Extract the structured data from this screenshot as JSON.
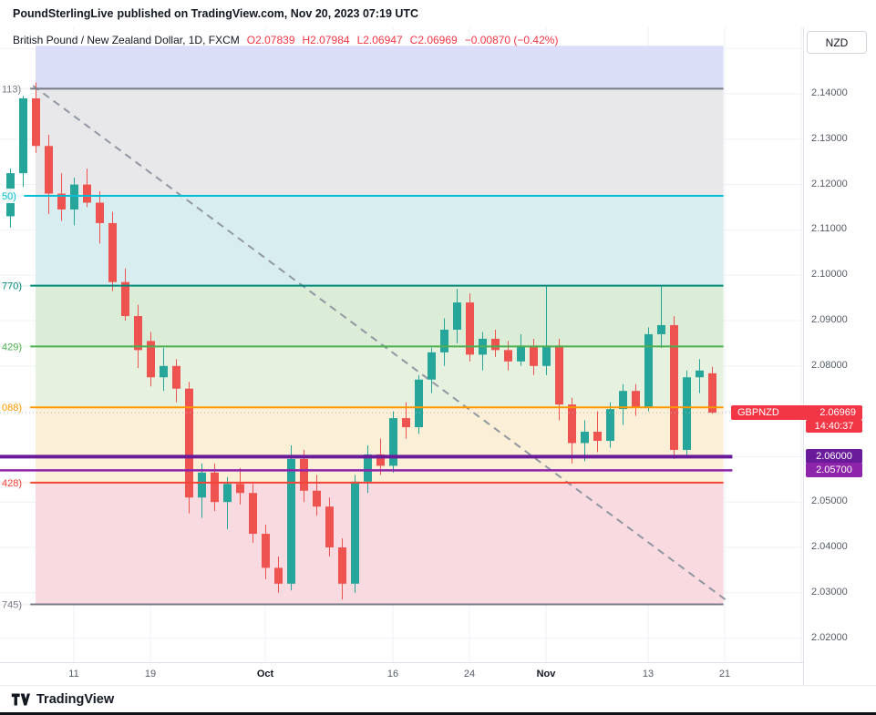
{
  "header": {
    "brand": "PoundSterlingLive",
    "rest": "published on TradingView.com, Nov 20, 2023 07:19 UTC"
  },
  "legend": {
    "symbol": "British Pound / New Zealand Dollar, 1D, FXCM",
    "ohlc": [
      {
        "label": "O",
        "value": "2.07839"
      },
      {
        "label": "H",
        "value": "2.07984"
      },
      {
        "label": "L",
        "value": "2.06947"
      },
      {
        "label": "C",
        "value": "2.06969"
      }
    ],
    "change": "−0.00870 (−0.42%)"
  },
  "price_axis": {
    "currency_button": "NZD",
    "badges": [
      {
        "name": "symbol-last-price-badge",
        "label": "GBPNZD",
        "value": "2.06969",
        "price": 2.06969,
        "bg": "#f23645",
        "row": 0
      },
      {
        "name": "countdown-badge",
        "value": "14:40:37",
        "price": 2.06969,
        "bg": "#f23645",
        "row": 1
      },
      {
        "name": "level-badge-206",
        "value": "2.06000",
        "price": 2.06,
        "bg": "#6a1b9a",
        "row": 0
      },
      {
        "name": "level-badge-2057",
        "value": "2.05700",
        "price": 2.057,
        "bg": "#8e24aa",
        "row": 0
      }
    ]
  },
  "footer": {
    "brand": "TradingView"
  },
  "chart_data": {
    "type": "candlestick",
    "title": "British Pound / New Zealand Dollar, 1D, FXCM",
    "symbol": "GBPNZD",
    "timeframe": "1D",
    "exchange": "FXCM",
    "last_ohlc": {
      "open": 2.07839,
      "high": 2.07984,
      "low": 2.06947,
      "close": 2.06969,
      "change": "−0.00870",
      "change_pct": "−0.42%"
    },
    "colors": {
      "up": "#26a69a",
      "down": "#ef5350"
    },
    "y_axis": {
      "min": 2.0147,
      "max": 2.1547,
      "ticks": [
        2.14,
        2.13,
        2.12,
        2.11,
        2.1,
        2.09,
        2.08,
        2.05,
        2.04,
        2.03,
        2.02
      ],
      "grid": [
        2.15,
        2.14,
        2.13,
        2.12,
        2.11,
        2.1,
        2.09,
        2.08,
        2.07,
        2.06,
        2.05,
        2.04,
        2.03,
        2.02
      ]
    },
    "x_axis": {
      "labels": [
        {
          "index": 5,
          "label": "11"
        },
        {
          "index": 11,
          "label": "19"
        },
        {
          "index": 20,
          "label": "Oct",
          "major": true
        },
        {
          "index": 30,
          "label": "16"
        },
        {
          "index": 36,
          "label": "24"
        },
        {
          "index": 42,
          "label": "Nov",
          "major": true
        },
        {
          "index": 50,
          "label": "13"
        },
        {
          "index": 56,
          "label": "21"
        },
        {
          "index": 62,
          "label": ""
        }
      ]
    },
    "candles": [
      [
        2.113,
        2.1235,
        2.1105,
        2.1225
      ],
      [
        2.1225,
        2.1405,
        2.1195,
        2.139
      ],
      [
        2.139,
        2.1425,
        2.127,
        2.1285
      ],
      [
        2.1285,
        2.131,
        2.1135,
        2.118
      ],
      [
        2.118,
        2.1225,
        2.112,
        2.1145
      ],
      [
        2.1145,
        2.1215,
        2.111,
        2.12
      ],
      [
        2.12,
        2.1235,
        2.115,
        2.116
      ],
      [
        2.116,
        2.1185,
        2.107,
        2.1115
      ],
      [
        2.1115,
        2.114,
        2.0965,
        2.0985
      ],
      [
        2.0985,
        2.1015,
        2.09,
        2.091
      ],
      [
        2.091,
        2.0935,
        2.0795,
        2.0835
      ],
      [
        2.0855,
        2.0875,
        2.0755,
        2.0775
      ],
      [
        2.0775,
        2.084,
        2.0745,
        2.08
      ],
      [
        2.08,
        2.0815,
        2.072,
        2.075
      ],
      [
        2.075,
        2.0765,
        2.0475,
        2.051
      ],
      [
        2.051,
        2.0585,
        2.0465,
        2.0565
      ],
      [
        2.0565,
        2.0585,
        2.048,
        2.05
      ],
      [
        2.05,
        2.0555,
        2.044,
        2.054
      ],
      [
        2.054,
        2.0575,
        2.0495,
        2.052
      ],
      [
        2.052,
        2.054,
        2.041,
        2.043
      ],
      [
        2.043,
        2.045,
        2.033,
        2.0355
      ],
      [
        2.0355,
        2.038,
        2.03,
        2.032
      ],
      [
        2.032,
        2.0625,
        2.0305,
        2.0595
      ],
      [
        2.0595,
        2.0615,
        2.05,
        2.0525
      ],
      [
        2.0525,
        2.056,
        2.047,
        2.049
      ],
      [
        2.049,
        2.051,
        2.038,
        2.04
      ],
      [
        2.04,
        2.042,
        2.0285,
        2.032
      ],
      [
        2.032,
        2.056,
        2.03,
        2.0545
      ],
      [
        2.0545,
        2.0625,
        2.052,
        2.0605
      ],
      [
        2.0605,
        2.064,
        2.056,
        2.058
      ],
      [
        2.058,
        2.07,
        2.0565,
        2.0685
      ],
      [
        2.0685,
        2.072,
        2.064,
        2.0665
      ],
      [
        2.0665,
        2.078,
        2.065,
        2.077
      ],
      [
        2.077,
        2.084,
        2.074,
        2.083
      ],
      [
        2.083,
        2.0905,
        2.08,
        2.088
      ],
      [
        2.088,
        2.097,
        2.085,
        2.094
      ],
      [
        2.094,
        2.096,
        2.081,
        2.0825
      ],
      [
        2.0825,
        2.0875,
        2.079,
        2.086
      ],
      [
        2.086,
        2.088,
        2.082,
        2.0835
      ],
      [
        2.0835,
        2.0855,
        2.079,
        2.081
      ],
      [
        2.081,
        2.087,
        2.08,
        2.0845
      ],
      [
        2.0845,
        2.086,
        2.078,
        2.08
      ],
      [
        2.08,
        2.0975,
        2.078,
        2.0845
      ],
      [
        2.0845,
        2.086,
        2.068,
        2.0715
      ],
      [
        2.0715,
        2.073,
        2.0585,
        2.063
      ],
      [
        2.063,
        2.068,
        2.059,
        2.0655
      ],
      [
        2.0655,
        2.07,
        2.061,
        2.0635
      ],
      [
        2.0635,
        2.072,
        2.062,
        2.0705
      ],
      [
        2.0705,
        2.076,
        2.067,
        2.0745
      ],
      [
        2.0745,
        2.076,
        2.069,
        2.071
      ],
      [
        2.071,
        2.0885,
        2.07,
        2.087
      ],
      [
        2.087,
        2.0975,
        2.084,
        2.089
      ],
      [
        2.089,
        2.091,
        2.0595,
        2.0615
      ],
      [
        2.0615,
        2.079,
        2.06,
        2.0775
      ],
      [
        2.0775,
        2.0815,
        2.074,
        2.079
      ],
      [
        2.07839,
        2.07984,
        2.06947,
        2.06969
      ]
    ],
    "zone_start_index": 2.0,
    "zone_end_index": 55.9,
    "zones": [
      {
        "top": 2.1506,
        "bottom": 2.14113,
        "color": "#dadff7"
      },
      {
        "top": 2.14113,
        "bottom": 2.1175,
        "color": "#e8e8ea"
      },
      {
        "top": 2.1175,
        "bottom": 2.0977,
        "color": "#d8edf0"
      },
      {
        "top": 2.0977,
        "bottom": 2.08429,
        "color": "#dbecd7"
      },
      {
        "top": 2.08429,
        "bottom": 2.07088,
        "color": "#e6f2df"
      },
      {
        "top": 2.07088,
        "bottom": 2.05428,
        "color": "#fcefd7"
      },
      {
        "top": 2.05428,
        "bottom": 2.02745,
        "color": "#f9dae0"
      }
    ],
    "levels": [
      {
        "price": 2.14113,
        "color": "#787b86",
        "width": 2,
        "label": "113)"
      },
      {
        "price": 2.1175,
        "color": "#00bcd4",
        "width": 2,
        "label": "50)"
      },
      {
        "price": 2.0977,
        "color": "#00897b",
        "width": 2,
        "label": "770)"
      },
      {
        "price": 2.08429,
        "color": "#4caf50",
        "width": 2,
        "label": "429)"
      },
      {
        "price": 2.07088,
        "color": "#ff9800",
        "width": 2,
        "label": "088)"
      },
      {
        "price": 2.06,
        "color": "#6a1b9a",
        "width": 4,
        "label": "",
        "to_index": 56.6
      },
      {
        "price": 2.057,
        "color": "#8e24aa",
        "width": 2.5,
        "label": "",
        "to_index": 56.6
      },
      {
        "price": 2.05428,
        "color": "#f44336",
        "width": 2,
        "label": "428)"
      },
      {
        "price": 2.02745,
        "color": "#787b86",
        "width": 2,
        "label": "745)"
      }
    ],
    "trendline": {
      "from_index": 1.8,
      "from_price": 2.1418,
      "to_index": 56.2,
      "to_price": 2.0282,
      "color": "#9097a3",
      "style": "dashed"
    },
    "last_price": {
      "price": 2.06969,
      "line_color": "#b2b5be"
    }
  }
}
